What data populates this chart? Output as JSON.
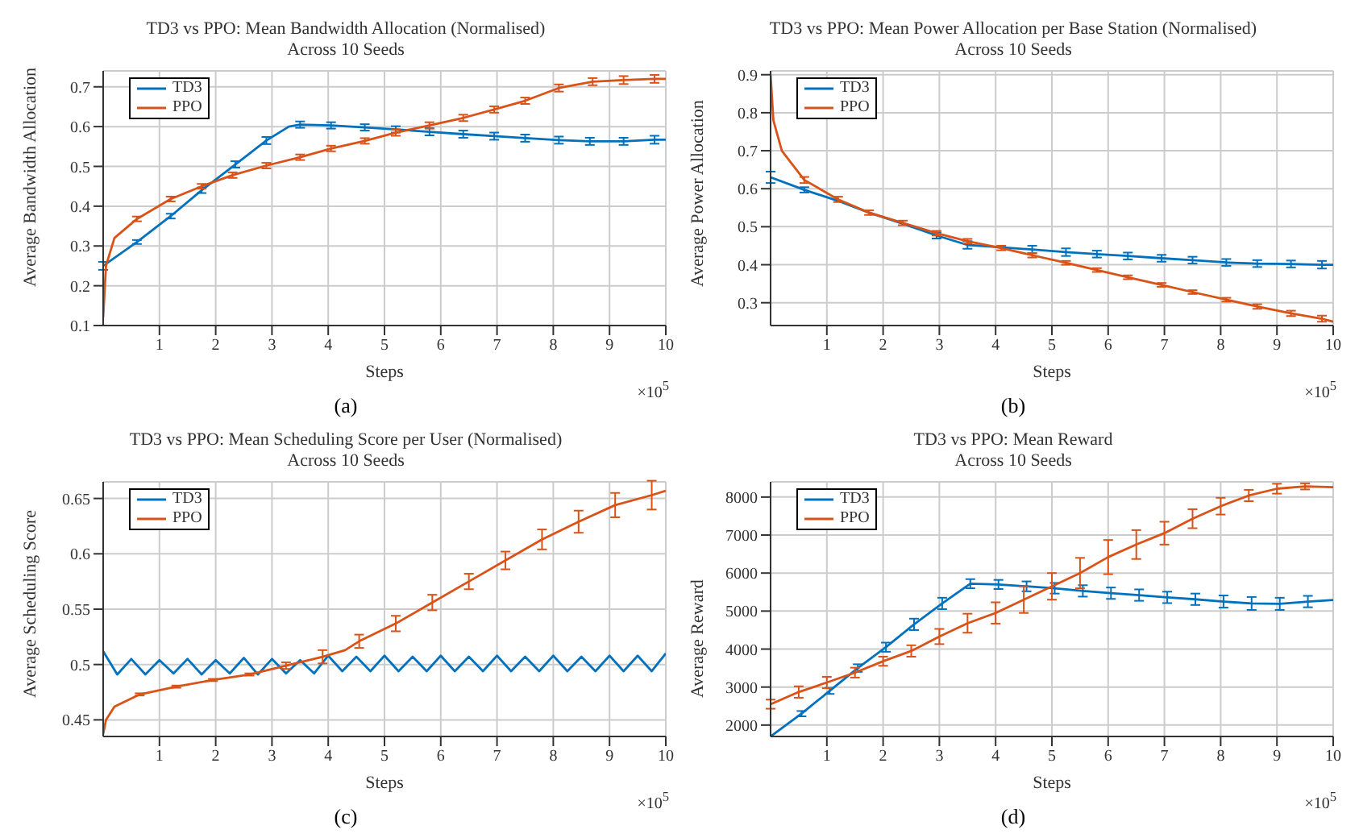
{
  "chart_data": [
    {
      "type": "line",
      "title": "TD3 vs PPO: Mean Bandwidth Allocation (Normalised)",
      "subtitle": "Across 10 Seeds",
      "xlabel": "Steps",
      "ylabel": "Average Bandwidth Allocation",
      "annotations": [
        "×10$^{5}$",
        "(a)"
      ],
      "xlim": [
        0,
        10
      ],
      "xticks": [
        1,
        2,
        3,
        4,
        5,
        6,
        7,
        8,
        9,
        10
      ],
      "ylim": [
        0.1,
        0.74
      ],
      "yticks": [
        0.1,
        0.2,
        0.3,
        0.4,
        0.5,
        0.6,
        0.7
      ],
      "grid": true,
      "legend": "top left",
      "marker": "none",
      "line_style": "solid",
      "series": [
        {
          "name": "TD3",
          "color": "#0072bd",
          "x": [
            0,
            0.6,
            1.2,
            1.75,
            2.35,
            2.9,
            3.3,
            3.5,
            4.05,
            4.65,
            5.2,
            5.8,
            6.4,
            6.95,
            7.5,
            8.1,
            8.65,
            9.25,
            9.8,
            10
          ],
          "values": [
            0.25,
            0.31,
            0.375,
            0.44,
            0.505,
            0.565,
            0.6,
            0.605,
            0.603,
            0.598,
            0.593,
            0.587,
            0.581,
            0.576,
            0.571,
            0.566,
            0.563,
            0.563,
            0.567,
            0.567
          ],
          "errors": [
            0.01,
            0.005,
            0.006,
            0.007,
            0.008,
            0.009,
            null,
            0.008,
            0.008,
            0.008,
            0.008,
            0.009,
            0.009,
            0.009,
            0.009,
            0.009,
            0.009,
            0.009,
            0.01,
            null
          ]
        },
        {
          "name": "PPO",
          "color": "#d95319",
          "x": [
            0,
            0.05,
            0.2,
            0.6,
            1.2,
            1.75,
            2.3,
            2.9,
            3.5,
            4.05,
            4.65,
            5.2,
            5.8,
            6.4,
            6.95,
            7.5,
            8.1,
            8.7,
            9.25,
            9.8,
            10
          ],
          "values": [
            0.12,
            0.25,
            0.32,
            0.368,
            0.418,
            0.45,
            0.478,
            0.502,
            0.523,
            0.545,
            0.564,
            0.585,
            0.603,
            0.622,
            0.643,
            0.665,
            0.697,
            0.713,
            0.717,
            0.72,
            0.72
          ],
          "errors": [
            null,
            null,
            null,
            0.006,
            0.006,
            0.006,
            0.007,
            0.007,
            0.007,
            0.007,
            0.007,
            0.008,
            0.008,
            0.008,
            0.008,
            0.008,
            0.009,
            0.009,
            0.01,
            0.01,
            null
          ]
        }
      ]
    },
    {
      "type": "line",
      "title": "TD3 vs PPO: Mean Power Allocation per Base Station (Normalised)",
      "subtitle": "Across 10 Seeds",
      "xlabel": "Steps",
      "ylabel": "Average Power Allocation",
      "annotations": [
        "×10$^{5}$",
        "(b)"
      ],
      "xlim": [
        0,
        10
      ],
      "xticks": [
        1,
        2,
        3,
        4,
        5,
        6,
        7,
        8,
        9,
        10
      ],
      "ylim": [
        0.24,
        0.91
      ],
      "yticks": [
        0.3,
        0.4,
        0.5,
        0.6,
        0.7,
        0.8,
        0.9
      ],
      "grid": true,
      "legend": "top left",
      "marker": "none",
      "line_style": "solid",
      "series": [
        {
          "name": "TD3",
          "color": "#0072bd",
          "x": [
            0,
            0.6,
            1.2,
            1.75,
            2.35,
            2.95,
            3.5,
            4.1,
            4.65,
            5.25,
            5.8,
            6.35,
            6.95,
            7.5,
            8.1,
            8.65,
            9.25,
            9.8,
            10
          ],
          "values": [
            0.63,
            0.597,
            0.568,
            0.537,
            0.508,
            0.477,
            0.452,
            0.446,
            0.44,
            0.433,
            0.428,
            0.423,
            0.417,
            0.412,
            0.406,
            0.403,
            0.402,
            0.4,
            0.4
          ],
          "errors": [
            0.015,
            0.007,
            null,
            null,
            null,
            0.008,
            0.01,
            null,
            0.01,
            0.01,
            0.009,
            0.009,
            0.009,
            0.009,
            0.009,
            0.009,
            0.009,
            0.01,
            null
          ]
        },
        {
          "name": "PPO",
          "color": "#d95319",
          "x": [
            0,
            0.05,
            0.2,
            0.6,
            1.2,
            1.75,
            2.35,
            2.95,
            3.5,
            4.1,
            4.65,
            5.25,
            5.8,
            6.35,
            6.95,
            7.5,
            8.1,
            8.65,
            9.25,
            9.8,
            10
          ],
          "values": [
            0.9,
            0.78,
            0.7,
            0.623,
            0.572,
            0.537,
            0.51,
            0.483,
            0.462,
            0.444,
            0.425,
            0.405,
            0.386,
            0.367,
            0.347,
            0.328,
            0.308,
            0.29,
            0.272,
            0.258,
            0.25
          ],
          "errors": [
            null,
            null,
            null,
            0.008,
            0.007,
            0.006,
            0.006,
            0.006,
            0.006,
            0.006,
            0.006,
            0.005,
            0.005,
            0.005,
            0.005,
            0.005,
            0.005,
            0.006,
            0.007,
            0.008,
            null
          ]
        }
      ]
    },
    {
      "type": "line",
      "title": "TD3 vs PPO: Mean Scheduling Score per User (Normalised)",
      "subtitle": "Across 10 Seeds",
      "xlabel": "Steps",
      "ylabel": "Average Scheduling Score",
      "annotations": [
        "×10$^{5}$",
        "(c)"
      ],
      "xlim": [
        0,
        10
      ],
      "xticks": [
        1,
        2,
        3,
        4,
        5,
        6,
        7,
        8,
        9,
        10
      ],
      "ylim": [
        0.435,
        0.665
      ],
      "yticks": [
        0.45,
        0.5,
        0.55,
        0.6,
        0.65
      ],
      "grid": true,
      "legend": "top left",
      "marker": "none",
      "line_style": "solid",
      "series": [
        {
          "name": "TD3",
          "color": "#0072bd",
          "x": [
            0,
            0.25,
            0.5,
            0.75,
            1,
            1.25,
            1.5,
            1.75,
            2,
            2.25,
            2.5,
            2.75,
            3,
            3.25,
            3.5,
            3.75,
            4,
            4.25,
            4.5,
            4.75,
            5,
            5.25,
            5.5,
            5.75,
            6,
            6.25,
            6.5,
            6.75,
            7,
            7.25,
            7.5,
            7.75,
            8,
            8.25,
            8.5,
            8.75,
            9,
            9.25,
            9.5,
            9.75,
            10
          ],
          "values": [
            0.512,
            0.491,
            0.505,
            0.491,
            0.504,
            0.492,
            0.505,
            0.491,
            0.504,
            0.492,
            0.506,
            0.491,
            0.505,
            0.492,
            0.504,
            0.492,
            0.508,
            0.494,
            0.507,
            0.494,
            0.508,
            0.494,
            0.507,
            0.494,
            0.508,
            0.494,
            0.507,
            0.494,
            0.508,
            0.494,
            0.507,
            0.494,
            0.508,
            0.494,
            0.507,
            0.494,
            0.508,
            0.494,
            0.508,
            0.494,
            0.51
          ]
        },
        {
          "name": "PPO",
          "color": "#d95319",
          "x": [
            0,
            0.05,
            0.2,
            0.65,
            1.3,
            1.95,
            2.6,
            3.25,
            3.9,
            4.3,
            4.55,
            5.2,
            5.85,
            6.5,
            7.15,
            7.8,
            8.45,
            9.1,
            9.75,
            10
          ],
          "values": [
            0.437,
            0.45,
            0.462,
            0.473,
            0.48,
            0.486,
            0.491,
            0.499,
            0.507,
            0.513,
            0.521,
            0.537,
            0.556,
            0.575,
            0.594,
            0.613,
            0.629,
            0.644,
            0.653,
            0.657
          ],
          "errors": [
            null,
            null,
            null,
            0.001,
            0.001,
            0.001,
            0.001,
            0.003,
            0.006,
            null,
            0.006,
            0.007,
            0.007,
            0.007,
            0.008,
            0.009,
            0.01,
            0.011,
            0.013,
            null
          ]
        }
      ]
    },
    {
      "type": "line",
      "title": "TD3 vs PPO: Mean Reward",
      "subtitle": "Across 10 Seeds",
      "xlabel": "Steps",
      "ylabel": "Average Reward",
      "annotations": [
        "×10$^{5}$",
        "(d)"
      ],
      "xlim": [
        0,
        10
      ],
      "xticks": [
        1,
        2,
        3,
        4,
        5,
        6,
        7,
        8,
        9,
        10
      ],
      "ylim": [
        1700,
        8400
      ],
      "yticks": [
        2000,
        3000,
        4000,
        5000,
        6000,
        7000,
        8000
      ],
      "grid": true,
      "legend": "top left",
      "marker": "none",
      "line_style": "solid",
      "series": [
        {
          "name": "TD3",
          "color": "#0072bd",
          "x": [
            0,
            0.55,
            1.05,
            1.55,
            2.05,
            2.55,
            3.05,
            3.55,
            4.05,
            4.55,
            5.05,
            5.55,
            6.05,
            6.55,
            7.05,
            7.55,
            8.05,
            8.55,
            9.05,
            9.55,
            10
          ],
          "values": [
            1700,
            2300,
            2900,
            3500,
            4050,
            4650,
            5200,
            5720,
            5700,
            5650,
            5600,
            5530,
            5470,
            5420,
            5360,
            5310,
            5250,
            5200,
            5190,
            5250,
            5290
          ],
          "errors": [
            null,
            70,
            80,
            100,
            120,
            150,
            150,
            120,
            120,
            130,
            140,
            150,
            150,
            150,
            150,
            150,
            160,
            170,
            160,
            150,
            null
          ]
        },
        {
          "name": "PPO",
          "color": "#d95319",
          "x": [
            0,
            0.5,
            1,
            1.5,
            2,
            2.5,
            3,
            3.5,
            4,
            4.5,
            5,
            5.5,
            6,
            6.5,
            7,
            7.5,
            8,
            8.5,
            9,
            9.5,
            10
          ],
          "values": [
            2550,
            2870,
            3120,
            3380,
            3680,
            3950,
            4330,
            4680,
            4950,
            5300,
            5650,
            6000,
            6420,
            6750,
            7050,
            7430,
            7760,
            8040,
            8220,
            8280,
            8260
          ],
          "errors": [
            120,
            150,
            150,
            130,
            120,
            150,
            200,
            250,
            280,
            350,
            350,
            400,
            450,
            380,
            300,
            250,
            220,
            150,
            130,
            80,
            null
          ]
        }
      ]
    }
  ]
}
